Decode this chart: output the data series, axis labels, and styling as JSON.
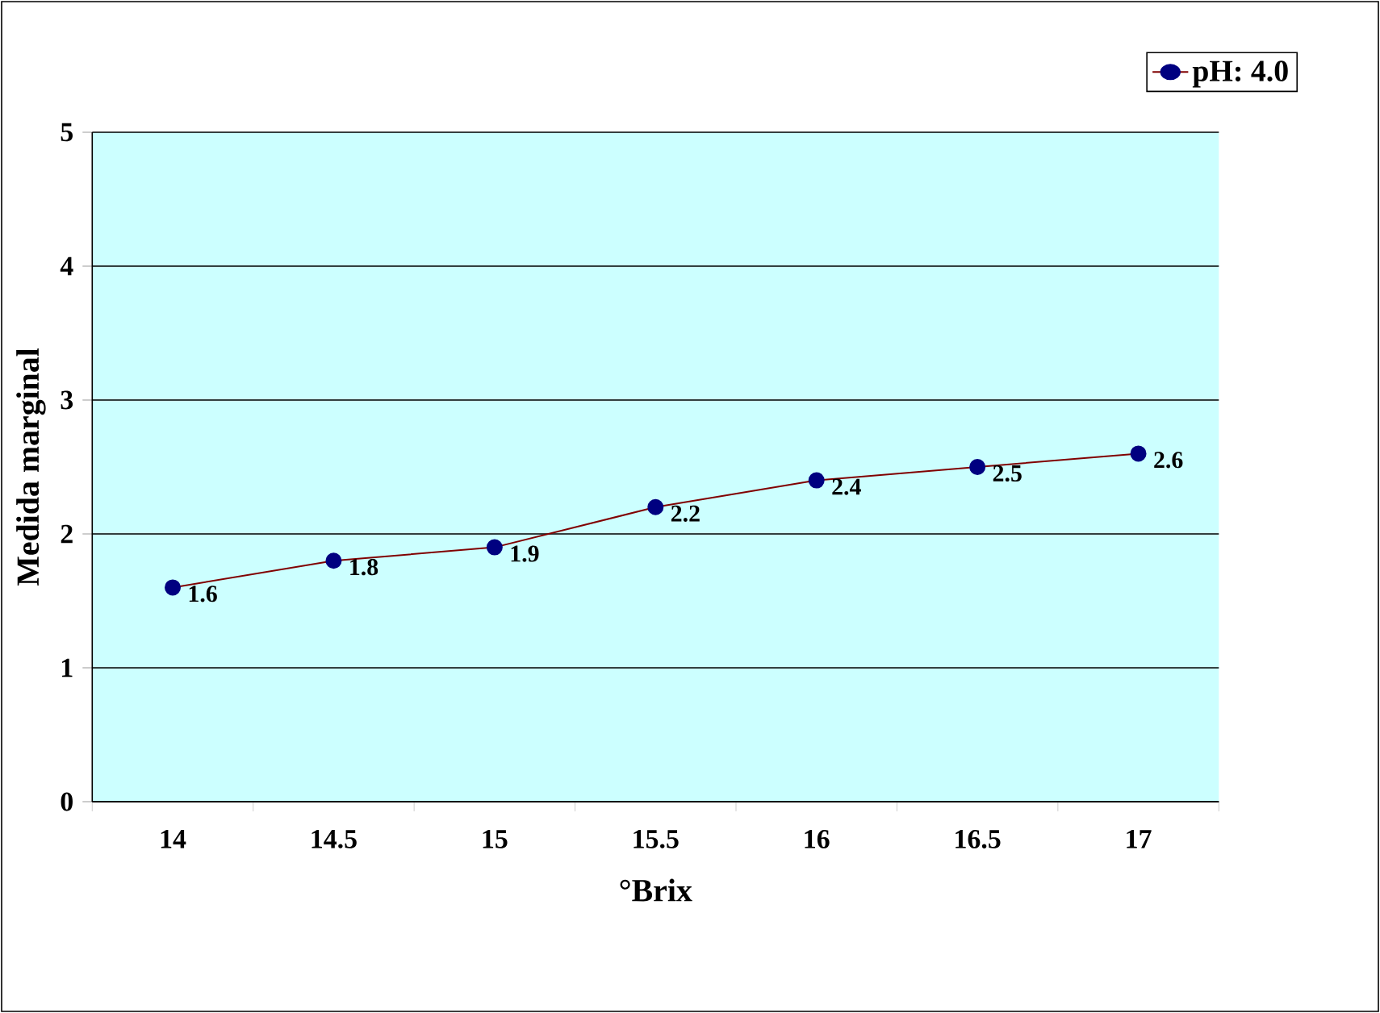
{
  "chart_data": {
    "type": "line",
    "xlabel": "°Brix",
    "ylabel": "Medida marginal",
    "categories": [
      "14",
      "14.5",
      "15",
      "15.5",
      "16",
      "16.5",
      "17"
    ],
    "series": [
      {
        "name": "pH: 4.0",
        "color": "#800000",
        "values": [
          1.6,
          1.8,
          1.9,
          2.2,
          2.4,
          2.5,
          2.6
        ]
      }
    ],
    "ylim": [
      0,
      5
    ],
    "yticks": [
      0,
      1,
      2,
      3,
      4,
      5
    ],
    "grid": "y",
    "legend": "top right",
    "marker": "circle",
    "line_style": "solid",
    "data_labels": true
  }
}
